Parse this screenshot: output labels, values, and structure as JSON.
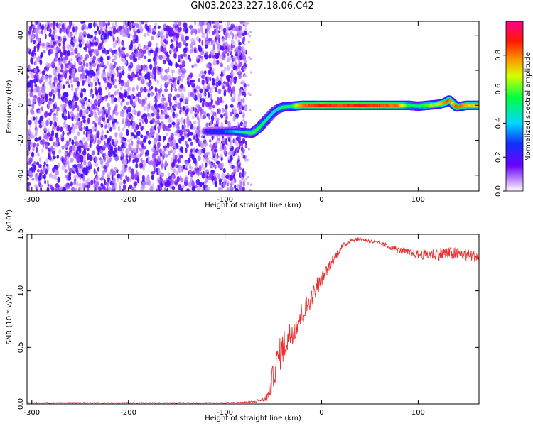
{
  "title": "GN03.2023.227.18.06.C42",
  "chart_data": [
    {
      "type": "heatmap",
      "title": "GN03.2023.227.18.06.C42",
      "xlabel": "Height of straight line (km)",
      "ylabel": "Frequency (Hz)",
      "xlim": [
        -305,
        163
      ],
      "ylim": [
        -49,
        48
      ],
      "xticks": [
        -300,
        -200,
        -100,
        0,
        100
      ],
      "yticks": [
        -40,
        -20,
        0,
        20,
        40
      ],
      "colorbar": {
        "label": "Normalized spectral amplitude",
        "range": [
          0.0,
          1.0
        ],
        "ticks": [
          "0.0",
          "0.2",
          "0.4",
          "0.6",
          "0.8"
        ],
        "colormap": "rainbow (purple-blue-cyan-green-yellow-red-magenta)"
      },
      "noise_region_x": [
        -305,
        -78
      ],
      "ridge": {
        "description": "Doppler frequency track",
        "x": [
          -120,
          -90,
          -80,
          -72,
          -65,
          -60,
          -55,
          -50,
          -45,
          -40,
          -30,
          -20,
          0,
          20,
          40,
          60,
          80,
          90,
          100,
          110,
          120,
          128,
          132,
          136,
          140,
          150,
          163
        ],
        "y": [
          -15,
          -15,
          -15.5,
          -16,
          -13,
          -10,
          -7,
          -4,
          -2,
          -1,
          -0.5,
          0,
          0,
          0,
          0,
          0,
          0,
          0,
          -0.5,
          0,
          0.5,
          1.5,
          3,
          1,
          -1,
          0,
          0
        ],
        "amplitude": [
          0.2,
          0.35,
          0.5,
          0.55,
          0.55,
          0.5,
          0.45,
          0.4,
          0.45,
          0.5,
          0.55,
          0.8,
          0.9,
          0.85,
          0.9,
          0.85,
          0.8,
          0.55,
          0.5,
          0.6,
          0.65,
          0.8,
          0.85,
          0.7,
          0.85,
          0.75,
          0.7
        ]
      }
    },
    {
      "type": "line",
      "xlabel": "Height of straight line (km)",
      "ylabel": "SNR (10 * v/v)",
      "yscale_label": "(x10",
      "yscale_exp": "4",
      "yscale_close": ")",
      "xlim": [
        -305,
        163
      ],
      "ylim": [
        0.0,
        1.5
      ],
      "xticks": [
        -300,
        -200,
        -100,
        0,
        100
      ],
      "yticks": [
        "0.0",
        "0.5",
        "1.0",
        "1.5"
      ],
      "color": "#e8312f",
      "series": [
        {
          "x": [
            -305,
            -200,
            -100,
            -80,
            -70,
            -60,
            -55,
            -50,
            -45,
            -40,
            -30,
            -20,
            -10,
            0,
            10,
            20,
            30,
            40,
            60,
            80,
            100,
            120,
            140,
            163
          ],
          "y": [
            0.01,
            0.01,
            0.01,
            0.015,
            0.02,
            0.04,
            0.08,
            0.25,
            0.4,
            0.5,
            0.65,
            0.8,
            0.95,
            1.1,
            1.25,
            1.38,
            1.45,
            1.46,
            1.42,
            1.36,
            1.32,
            1.33,
            1.33,
            1.3
          ],
          "noise": [
            0.004,
            0.004,
            0.004,
            0.006,
            0.008,
            0.02,
            0.06,
            0.12,
            0.15,
            0.15,
            0.12,
            0.12,
            0.08,
            0.06,
            0.05,
            0.03,
            0.02,
            0.015,
            0.02,
            0.03,
            0.04,
            0.06,
            0.06,
            0.05
          ]
        }
      ]
    }
  ]
}
